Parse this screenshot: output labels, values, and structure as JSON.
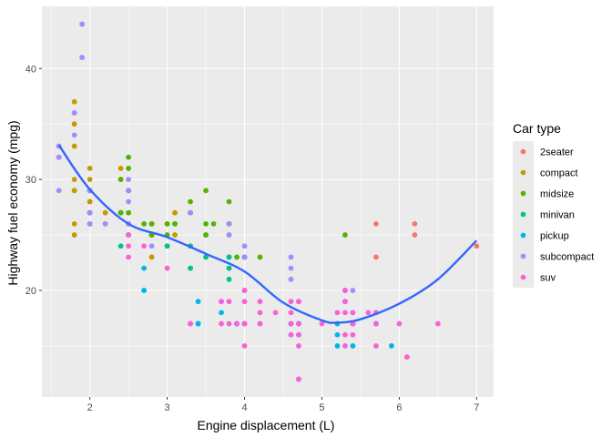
{
  "chart_data": {
    "type": "scatter",
    "xlabel": "Engine displacement (L)",
    "ylabel": "Highway fuel economy (mpg)",
    "xlim": [
      1.38,
      7.22
    ],
    "ylim": [
      10.4,
      45.6
    ],
    "x_ticks": [
      2,
      3,
      4,
      5,
      6,
      7
    ],
    "y_ticks": [
      20,
      30,
      40
    ],
    "grid": true,
    "legend": {
      "title": "Car type",
      "position": "right"
    },
    "series": [
      {
        "name": "2seater",
        "color": "#F8766D",
        "points": [
          [
            5.7,
            26
          ],
          [
            5.7,
            23
          ],
          [
            6.2,
            26
          ],
          [
            6.2,
            25
          ],
          [
            7.0,
            24
          ]
        ]
      },
      {
        "name": "compact",
        "color": "#C49A00",
        "points": [
          [
            1.8,
            29
          ],
          [
            1.8,
            29
          ],
          [
            2.0,
            31
          ],
          [
            2.0,
            30
          ],
          [
            2.8,
            26
          ],
          [
            2.8,
            26
          ],
          [
            3.1,
            27
          ],
          [
            1.8,
            26
          ],
          [
            1.8,
            25
          ],
          [
            2.0,
            28
          ],
          [
            2.0,
            29
          ],
          [
            2.8,
            25
          ],
          [
            2.8,
            25
          ],
          [
            3.1,
            25
          ],
          [
            2.2,
            26
          ],
          [
            2.2,
            27
          ],
          [
            2.4,
            31
          ],
          [
            2.4,
            30
          ],
          [
            3.0,
            26
          ],
          [
            1.8,
            37
          ],
          [
            1.8,
            35
          ],
          [
            1.8,
            33
          ],
          [
            2.0,
            29
          ],
          [
            2.0,
            29
          ],
          [
            2.0,
            26
          ],
          [
            2.8,
            23
          ],
          [
            1.9,
            44
          ],
          [
            2.0,
            29
          ],
          [
            2.0,
            28
          ],
          [
            2.5,
            29
          ],
          [
            2.5,
            29
          ],
          [
            1.8,
            30
          ],
          [
            2.4,
            27
          ],
          [
            2.5,
            25
          ]
        ]
      },
      {
        "name": "midsize",
        "color": "#53B400",
        "points": [
          [
            2.4,
            27
          ],
          [
            2.4,
            30
          ],
          [
            3.1,
            26
          ],
          [
            3.5,
            29
          ],
          [
            3.6,
            26
          ],
          [
            2.4,
            27
          ],
          [
            3.0,
            26
          ],
          [
            3.3,
            27
          ],
          [
            3.3,
            28
          ],
          [
            3.8,
            26
          ],
          [
            3.8,
            26
          ],
          [
            3.8,
            28
          ],
          [
            5.3,
            25
          ],
          [
            2.5,
            32
          ],
          [
            2.5,
            27
          ],
          [
            2.5,
            25
          ],
          [
            2.5,
            25
          ],
          [
            2.5,
            31
          ],
          [
            2.7,
            26
          ],
          [
            2.8,
            26
          ],
          [
            2.0,
            29
          ],
          [
            2.0,
            26
          ],
          [
            2.0,
            27
          ],
          [
            2.8,
            25
          ],
          [
            3.5,
            26
          ],
          [
            3.5,
            25
          ],
          [
            3.1,
            26
          ],
          [
            3.3,
            22
          ],
          [
            3.0,
            24
          ],
          [
            3.0,
            25
          ],
          [
            3.5,
            25
          ],
          [
            3.8,
            23
          ],
          [
            3.8,
            22
          ],
          [
            4.0,
            23
          ],
          [
            4.2,
            23
          ],
          [
            3.9,
            23
          ]
        ]
      },
      {
        "name": "minivan",
        "color": "#00C094",
        "points": [
          [
            2.4,
            24
          ],
          [
            3.0,
            24
          ],
          [
            3.3,
            22
          ],
          [
            3.3,
            24
          ],
          [
            3.3,
            24
          ],
          [
            3.3,
            17
          ],
          [
            3.8,
            22
          ],
          [
            3.8,
            21
          ],
          [
            3.8,
            23
          ],
          [
            4.0,
            23
          ],
          [
            3.5,
            23
          ]
        ]
      },
      {
        "name": "pickup",
        "color": "#00B6EB",
        "points": [
          [
            2.7,
            20
          ],
          [
            2.7,
            20
          ],
          [
            2.7,
            22
          ],
          [
            3.4,
            17
          ],
          [
            3.4,
            19
          ],
          [
            4.0,
            20
          ],
          [
            4.0,
            17
          ],
          [
            3.7,
            19
          ],
          [
            3.7,
            18
          ],
          [
            3.9,
            17
          ],
          [
            3.9,
            17
          ],
          [
            4.7,
            17
          ],
          [
            4.7,
            16
          ],
          [
            4.7,
            12
          ],
          [
            5.2,
            17
          ],
          [
            5.2,
            15
          ],
          [
            5.7,
            17
          ],
          [
            5.9,
            15
          ],
          [
            4.7,
            17
          ],
          [
            4.7,
            19
          ],
          [
            4.7,
            17
          ],
          [
            5.2,
            16
          ],
          [
            5.4,
            17
          ],
          [
            5.4,
            15
          ],
          [
            3.4,
            17
          ],
          [
            3.4,
            17
          ],
          [
            4.2,
            17
          ],
          [
            4.6,
            16
          ],
          [
            4.6,
            17
          ],
          [
            4.6,
            17
          ],
          [
            5.4,
            17
          ],
          [
            5.4,
            17
          ],
          [
            5.7,
            17
          ]
        ]
      },
      {
        "name": "subcompact",
        "color": "#A58AFF",
        "points": [
          [
            1.6,
            33
          ],
          [
            1.6,
            32
          ],
          [
            1.6,
            32
          ],
          [
            1.6,
            29
          ],
          [
            1.6,
            32
          ],
          [
            1.8,
            34
          ],
          [
            1.8,
            36
          ],
          [
            1.8,
            36
          ],
          [
            2.0,
            29
          ],
          [
            2.0,
            26
          ],
          [
            2.0,
            27
          ],
          [
            1.9,
            41
          ],
          [
            1.9,
            44
          ],
          [
            2.5,
            26
          ],
          [
            2.5,
            28
          ],
          [
            2.5,
            29
          ],
          [
            2.5,
            29
          ],
          [
            2.0,
            27
          ],
          [
            2.0,
            26
          ],
          [
            2.2,
            26
          ],
          [
            2.5,
            26
          ],
          [
            3.8,
            26
          ],
          [
            3.8,
            25
          ],
          [
            4.0,
            23
          ],
          [
            4.0,
            24
          ],
          [
            4.6,
            23
          ],
          [
            4.6,
            22
          ],
          [
            5.4,
            20
          ],
          [
            4.6,
            21
          ],
          [
            2.0,
            27
          ],
          [
            2.5,
            29
          ],
          [
            2.5,
            30
          ],
          [
            2.8,
            24
          ],
          [
            3.3,
            27
          ],
          [
            3.8,
            25
          ]
        ]
      },
      {
        "name": "suv",
        "color": "#FB61D7",
        "points": [
          [
            5.3,
            20
          ],
          [
            5.3,
            15
          ],
          [
            5.3,
            20
          ],
          [
            5.7,
            17
          ],
          [
            6.0,
            17
          ],
          [
            5.7,
            15
          ],
          [
            6.5,
            17
          ],
          [
            4.7,
            17
          ],
          [
            5.3,
            19
          ],
          [
            5.2,
            18
          ],
          [
            4.0,
            17
          ],
          [
            4.0,
            15
          ],
          [
            4.6,
            17
          ],
          [
            5.0,
            17
          ],
          [
            4.2,
            17
          ],
          [
            4.2,
            19
          ],
          [
            4.6,
            19
          ],
          [
            5.4,
            17
          ],
          [
            5.4,
            18
          ],
          [
            4.7,
            12
          ],
          [
            4.7,
            12
          ],
          [
            4.7,
            17
          ],
          [
            4.7,
            19
          ],
          [
            5.7,
            18
          ],
          [
            6.1,
            14
          ],
          [
            4.0,
            19
          ],
          [
            4.0,
            20
          ],
          [
            4.6,
            18
          ],
          [
            5.4,
            16
          ],
          [
            5.4,
            18
          ],
          [
            2.5,
            23
          ],
          [
            2.5,
            25
          ],
          [
            4.0,
            17
          ],
          [
            3.8,
            19
          ],
          [
            3.8,
            17
          ],
          [
            3.3,
            17
          ],
          [
            3.7,
            19
          ],
          [
            4.0,
            20
          ],
          [
            4.6,
            16
          ],
          [
            5.3,
            20
          ],
          [
            2.7,
            24
          ],
          [
            3.0,
            22
          ],
          [
            2.5,
            24
          ],
          [
            3.9,
            17
          ],
          [
            4.2,
            18
          ],
          [
            5.3,
            19
          ],
          [
            5.3,
            19
          ],
          [
            5.6,
            18
          ],
          [
            5.3,
            18
          ],
          [
            4.4,
            18
          ],
          [
            5.7,
            18
          ],
          [
            4.7,
            15
          ],
          [
            4.7,
            19
          ],
          [
            4.7,
            17
          ],
          [
            3.7,
            17
          ],
          [
            4.7,
            16
          ],
          [
            3.3,
            17
          ],
          [
            5.3,
            16
          ],
          [
            5.3,
            20
          ],
          [
            6.1,
            14
          ],
          [
            4.7,
            12
          ]
        ]
      }
    ],
    "smooth": {
      "name": "loess",
      "color": "#3366FF",
      "x": [
        1.6,
        2.0,
        2.5,
        3.0,
        3.5,
        4.0,
        4.5,
        5.0,
        5.2,
        5.5,
        6.0,
        6.5,
        7.0
      ],
      "y": [
        33.1,
        29.1,
        26.0,
        24.8,
        23.3,
        21.7,
        18.9,
        17.3,
        17.1,
        17.4,
        18.8,
        21.0,
        24.5
      ]
    }
  }
}
